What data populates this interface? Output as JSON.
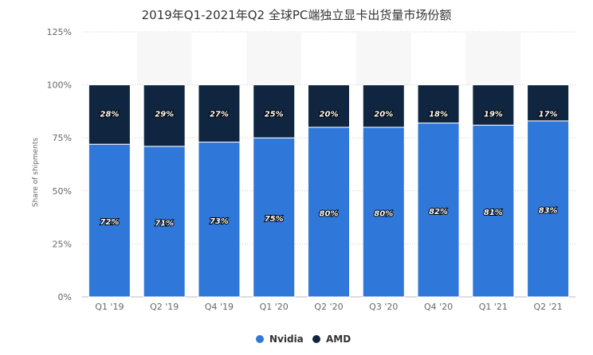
{
  "chart_data": {
    "type": "bar",
    "stacked": true,
    "title": "2019年Q1-2021年Q2 全球PC端独立显卡出货量市场份额",
    "ylabel": "Share of shipments",
    "ylim": [
      0,
      125
    ],
    "yticks": [
      "0%",
      "25%",
      "50%",
      "75%",
      "100%",
      "125%"
    ],
    "ytick_values": [
      0,
      25,
      50,
      75,
      100,
      125
    ],
    "categories": [
      "Q1 '19",
      "Q2 '19",
      "Q4 '19",
      "Q1 '20",
      "Q2 '20",
      "Q3 '20",
      "Q4 '20",
      "Q1 '21",
      "Q2 '21"
    ],
    "series": [
      {
        "name": "Nvidia",
        "color": "#2f77d9",
        "values": [
          72,
          71,
          73,
          75,
          80,
          80,
          82,
          81,
          83
        ],
        "labels": [
          "72%",
          "71%",
          "73%",
          "75%",
          "80%",
          "80%",
          "82%",
          "81%",
          "83%"
        ]
      },
      {
        "name": "AMD",
        "color": "#0f2540",
        "values": [
          28,
          29,
          27,
          25,
          20,
          20,
          18,
          19,
          17
        ],
        "labels": [
          "28%",
          "29%",
          "27%",
          "25%",
          "20%",
          "20%",
          "18%",
          "19%",
          "17%"
        ]
      }
    ],
    "grid": true,
    "legend_position": "bottom-center"
  }
}
